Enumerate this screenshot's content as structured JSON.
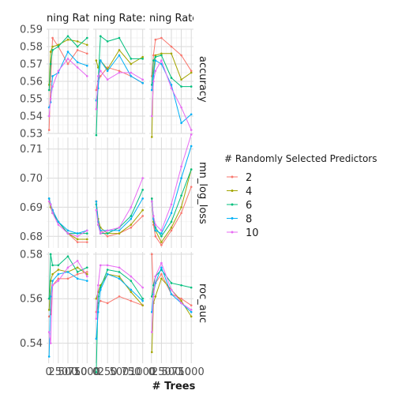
{
  "chart_data": {
    "type": "line",
    "layout": "facet-grid",
    "xlabel": "# Trees",
    "x_ticks": [
      0,
      250,
      500,
      750,
      1000
    ],
    "x_tick_labels": [
      "0",
      "250",
      "500",
      "750",
      "1000"
    ],
    "xlim": [
      0,
      1000
    ],
    "col_strips": [
      "ning Rate:",
      "ning Rate:",
      "ning Rate:"
    ],
    "rows": [
      {
        "metric": "accuracy",
        "ylim": [
          0.53,
          0.59
        ],
        "y_ticks": [
          0.53,
          0.54,
          0.55,
          0.56,
          0.57,
          0.58,
          0.59
        ],
        "y_tick_labels": [
          "0.53",
          "0.54",
          "0.55",
          "0.56",
          "0.57",
          "0.58",
          "0.59"
        ]
      },
      {
        "metric": "mn_log_loss",
        "ylim": [
          0.676,
          0.714
        ],
        "y_ticks": [
          0.68,
          0.69,
          0.7,
          0.71
        ],
        "y_tick_labels": [
          "0.68",
          "0.69",
          "0.70",
          "0.71"
        ]
      },
      {
        "metric": "roc_auc",
        "ylim": [
          0.531,
          0.581
        ],
        "y_ticks": [
          0.54,
          0.56,
          0.58
        ],
        "y_tick_labels": [
          "0.54",
          "0.56",
          "0.58"
        ]
      }
    ],
    "x": [
      10,
      50,
      100,
      250,
      500,
      750,
      1000
    ],
    "legend": {
      "title": "# Randomly Selected Predictors",
      "placement": "right",
      "entries": [
        {
          "label": "2",
          "color": "#F8766D"
        },
        {
          "label": "4",
          "color": "#A3A500"
        },
        {
          "label": "6",
          "color": "#00BF7D"
        },
        {
          "label": "8",
          "color": "#00B0F6"
        },
        {
          "label": "10",
          "color": "#E76BF3"
        }
      ]
    },
    "panels": [
      {
        "row": 0,
        "col": 0,
        "series": {
          "2": [
            0.532,
            0.56,
            0.585,
            0.58,
            0.57,
            0.578,
            0.576
          ],
          "4": [
            0.558,
            0.577,
            0.58,
            0.581,
            0.584,
            0.583,
            0.581
          ],
          "6": [
            0.555,
            0.57,
            0.578,
            0.58,
            0.586,
            0.58,
            0.585
          ],
          "8": [
            0.545,
            0.548,
            0.563,
            0.565,
            0.577,
            0.571,
            0.569
          ],
          "10": [
            0.54,
            0.55,
            0.557,
            0.566,
            0.573,
            0.568,
            0.563
          ]
        }
      },
      {
        "row": 0,
        "col": 1,
        "series": {
          "2": [
            0.555,
            0.56,
            0.563,
            0.568,
            0.566,
            0.563,
            0.559
          ],
          "4": [
            0.572,
            0.568,
            0.572,
            0.567,
            0.578,
            0.57,
            0.574
          ],
          "6": [
            0.529,
            0.56,
            0.586,
            0.583,
            0.585,
            0.573,
            0.573
          ],
          "8": [
            0.549,
            0.556,
            0.572,
            0.566,
            0.575,
            0.563,
            0.559
          ],
          "10": [
            0.544,
            0.563,
            0.566,
            0.561,
            0.565,
            0.565,
            0.561
          ]
        }
      },
      {
        "row": 0,
        "col": 2,
        "series": {
          "2": [
            0.563,
            0.575,
            0.584,
            0.585,
            0.58,
            0.575,
            0.566
          ],
          "4": [
            0.528,
            0.565,
            0.575,
            0.576,
            0.576,
            0.561,
            0.565
          ],
          "6": [
            0.558,
            0.572,
            0.574,
            0.575,
            0.562,
            0.557,
            0.557
          ],
          "8": [
            0.555,
            0.563,
            0.572,
            0.57,
            0.558,
            0.536,
            0.541
          ],
          "10": [
            0.54,
            0.56,
            0.566,
            0.572,
            0.556,
            0.545,
            0.532
          ]
        }
      },
      {
        "row": 1,
        "col": 0,
        "series": {
          "2": [
            0.693,
            0.691,
            0.689,
            0.685,
            0.681,
            0.678,
            0.678
          ],
          "4": [
            0.692,
            0.69,
            0.688,
            0.685,
            0.681,
            0.679,
            0.679
          ],
          "6": [
            0.693,
            0.691,
            0.688,
            0.685,
            0.681,
            0.681,
            0.681
          ],
          "8": [
            0.693,
            0.691,
            0.689,
            0.685,
            0.682,
            0.681,
            0.682
          ],
          "10": [
            0.692,
            0.691,
            0.688,
            0.684,
            0.681,
            0.68,
            0.682
          ]
        }
      },
      {
        "row": 1,
        "col": 1,
        "series": {
          "2": [
            0.692,
            0.685,
            0.682,
            0.68,
            0.681,
            0.683,
            0.687
          ],
          "4": [
            0.692,
            0.686,
            0.683,
            0.681,
            0.681,
            0.684,
            0.689
          ],
          "6": [
            0.691,
            0.684,
            0.681,
            0.681,
            0.683,
            0.687,
            0.696
          ],
          "8": [
            0.692,
            0.685,
            0.682,
            0.682,
            0.682,
            0.686,
            0.693
          ],
          "10": [
            0.689,
            0.684,
            0.681,
            0.682,
            0.683,
            0.69,
            0.7
          ]
        }
      },
      {
        "row": 1,
        "col": 2,
        "series": {
          "2": [
            0.693,
            0.684,
            0.68,
            0.677,
            0.682,
            0.688,
            0.697
          ],
          "4": [
            0.692,
            0.685,
            0.682,
            0.678,
            0.683,
            0.69,
            0.703
          ],
          "6": [
            0.693,
            0.686,
            0.683,
            0.68,
            0.685,
            0.694,
            0.703
          ],
          "8": [
            0.692,
            0.686,
            0.682,
            0.681,
            0.688,
            0.7,
            0.711
          ],
          "10": [
            0.692,
            0.687,
            0.684,
            0.682,
            0.691,
            0.704,
            0.715
          ]
        }
      },
      {
        "row": 2,
        "col": 0,
        "series": {
          "2": [
            0.552,
            0.553,
            0.566,
            0.569,
            0.569,
            0.571,
            0.572
          ],
          "4": [
            0.555,
            0.568,
            0.571,
            0.573,
            0.572,
            0.574,
            0.571
          ],
          "6": [
            0.56,
            0.58,
            0.575,
            0.575,
            0.579,
            0.572,
            0.574
          ],
          "8": [
            0.534,
            0.561,
            0.568,
            0.571,
            0.572,
            0.569,
            0.568
          ],
          "10": [
            0.545,
            0.54,
            0.566,
            0.568,
            0.574,
            0.577,
            0.57
          ]
        }
      },
      {
        "row": 2,
        "col": 1,
        "series": {
          "2": [
            0.554,
            0.558,
            0.559,
            0.558,
            0.561,
            0.559,
            0.557
          ],
          "4": [
            0.56,
            0.563,
            0.566,
            0.571,
            0.57,
            0.563,
            0.557
          ],
          "6": [
            0.527,
            0.561,
            0.565,
            0.573,
            0.572,
            0.568,
            0.56
          ],
          "8": [
            0.542,
            0.554,
            0.564,
            0.571,
            0.569,
            0.564,
            0.559
          ],
          "10": [
            0.551,
            0.566,
            0.575,
            0.575,
            0.574,
            0.57,
            0.565
          ]
        }
      },
      {
        "row": 2,
        "col": 2,
        "series": {
          "2": [
            0.58,
            0.563,
            0.567,
            0.571,
            0.562,
            0.56,
            0.557
          ],
          "4": [
            0.536,
            0.558,
            0.561,
            0.569,
            0.564,
            0.559,
            0.552
          ],
          "6": [
            0.561,
            0.566,
            0.57,
            0.573,
            0.567,
            0.566,
            0.565
          ],
          "8": [
            0.554,
            0.562,
            0.567,
            0.574,
            0.562,
            0.558,
            0.554
          ],
          "10": [
            0.545,
            0.561,
            0.57,
            0.576,
            0.564,
            0.558,
            0.555
          ]
        }
      }
    ]
  }
}
